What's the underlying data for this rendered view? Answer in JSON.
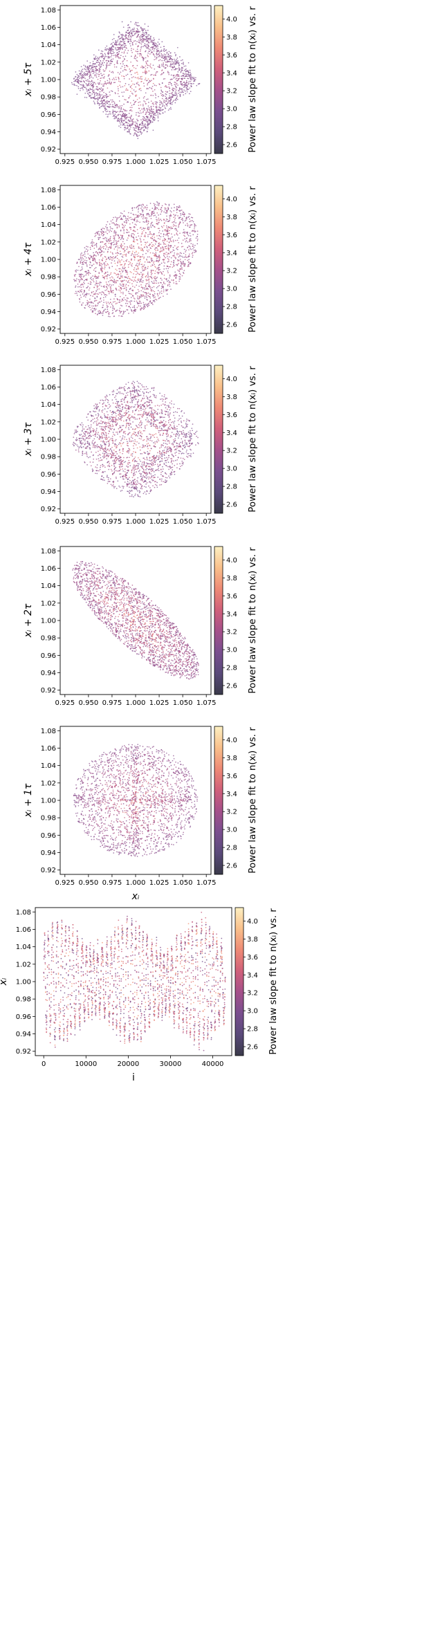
{
  "colorbar": {
    "label": "Power law slope fit to n(xᵢ) vs. r",
    "ticks": [
      "2.6",
      "2.8",
      "3.0",
      "3.2",
      "3.4",
      "3.6",
      "3.8",
      "4.0"
    ],
    "range": [
      2.5,
      4.15
    ],
    "colors": [
      "#3a3a4a",
      "#5a4a7a",
      "#7a4f8f",
      "#a5508a",
      "#d0607a",
      "#ee8a75",
      "#f9c08b",
      "#fdf0c2"
    ]
  },
  "chart_data": [
    {
      "type": "scatter",
      "shape": "diamond",
      "xlabel": "",
      "ylabel": "xᵢ + 5τ",
      "xlim": [
        0.92,
        1.08
      ],
      "ylim": [
        0.915,
        1.085
      ],
      "xticks": [
        "0.925",
        "0.950",
        "0.975",
        "1.000",
        "1.025",
        "1.050",
        "1.075"
      ],
      "yticks": [
        "0.92",
        "0.94",
        "0.96",
        "0.98",
        "1.00",
        "1.02",
        "1.04",
        "1.06",
        "1.08"
      ]
    },
    {
      "type": "scatter",
      "shape": "ellipse_pos",
      "xlabel": "",
      "ylabel": "xᵢ + 4τ",
      "xlim": [
        0.92,
        1.08
      ],
      "ylim": [
        0.915,
        1.085
      ],
      "xticks": [
        "0.925",
        "0.950",
        "0.975",
        "1.000",
        "1.025",
        "1.050",
        "1.075"
      ],
      "yticks": [
        "0.92",
        "0.94",
        "0.96",
        "0.98",
        "1.00",
        "1.02",
        "1.04",
        "1.06",
        "1.08"
      ]
    },
    {
      "type": "scatter",
      "shape": "rounded_diamond",
      "xlabel": "",
      "ylabel": "xᵢ + 3τ",
      "xlim": [
        0.92,
        1.08
      ],
      "ylim": [
        0.915,
        1.085
      ],
      "xticks": [
        "0.925",
        "0.950",
        "0.975",
        "1.000",
        "1.025",
        "1.050",
        "1.075"
      ],
      "yticks": [
        "0.92",
        "0.94",
        "0.96",
        "0.98",
        "1.00",
        "1.02",
        "1.04",
        "1.06",
        "1.08"
      ]
    },
    {
      "type": "scatter",
      "shape": "ellipse_neg",
      "xlabel": "",
      "ylabel": "xᵢ + 2τ",
      "xlim": [
        0.92,
        1.08
      ],
      "ylim": [
        0.915,
        1.085
      ],
      "xticks": [
        "0.925",
        "0.950",
        "0.975",
        "1.000",
        "1.025",
        "1.050",
        "1.075"
      ],
      "yticks": [
        "0.92",
        "0.94",
        "0.96",
        "0.98",
        "1.00",
        "1.02",
        "1.04",
        "1.06",
        "1.08"
      ]
    },
    {
      "type": "scatter",
      "shape": "circle",
      "xlabel": "xᵢ",
      "ylabel": "xᵢ + 1τ",
      "xlim": [
        0.92,
        1.08
      ],
      "ylim": [
        0.915,
        1.085
      ],
      "xticks": [
        "0.925",
        "0.950",
        "0.975",
        "1.000",
        "1.025",
        "1.050",
        "1.075"
      ],
      "yticks": [
        "0.92",
        "0.94",
        "0.96",
        "0.98",
        "1.00",
        "1.02",
        "1.04",
        "1.06",
        "1.08"
      ]
    },
    {
      "type": "scatter",
      "shape": "timeseries",
      "xlabel": "i",
      "ylabel": "xᵢ",
      "xlim": [
        -2000,
        44500
      ],
      "ylim": [
        0.915,
        1.085
      ],
      "n_points": 43000,
      "xticks": [
        "0",
        "10000",
        "20000",
        "30000",
        "40000"
      ],
      "yticks": [
        "0.92",
        "0.94",
        "0.96",
        "0.98",
        "1.00",
        "1.02",
        "1.04",
        "1.06",
        "1.08"
      ]
    }
  ]
}
